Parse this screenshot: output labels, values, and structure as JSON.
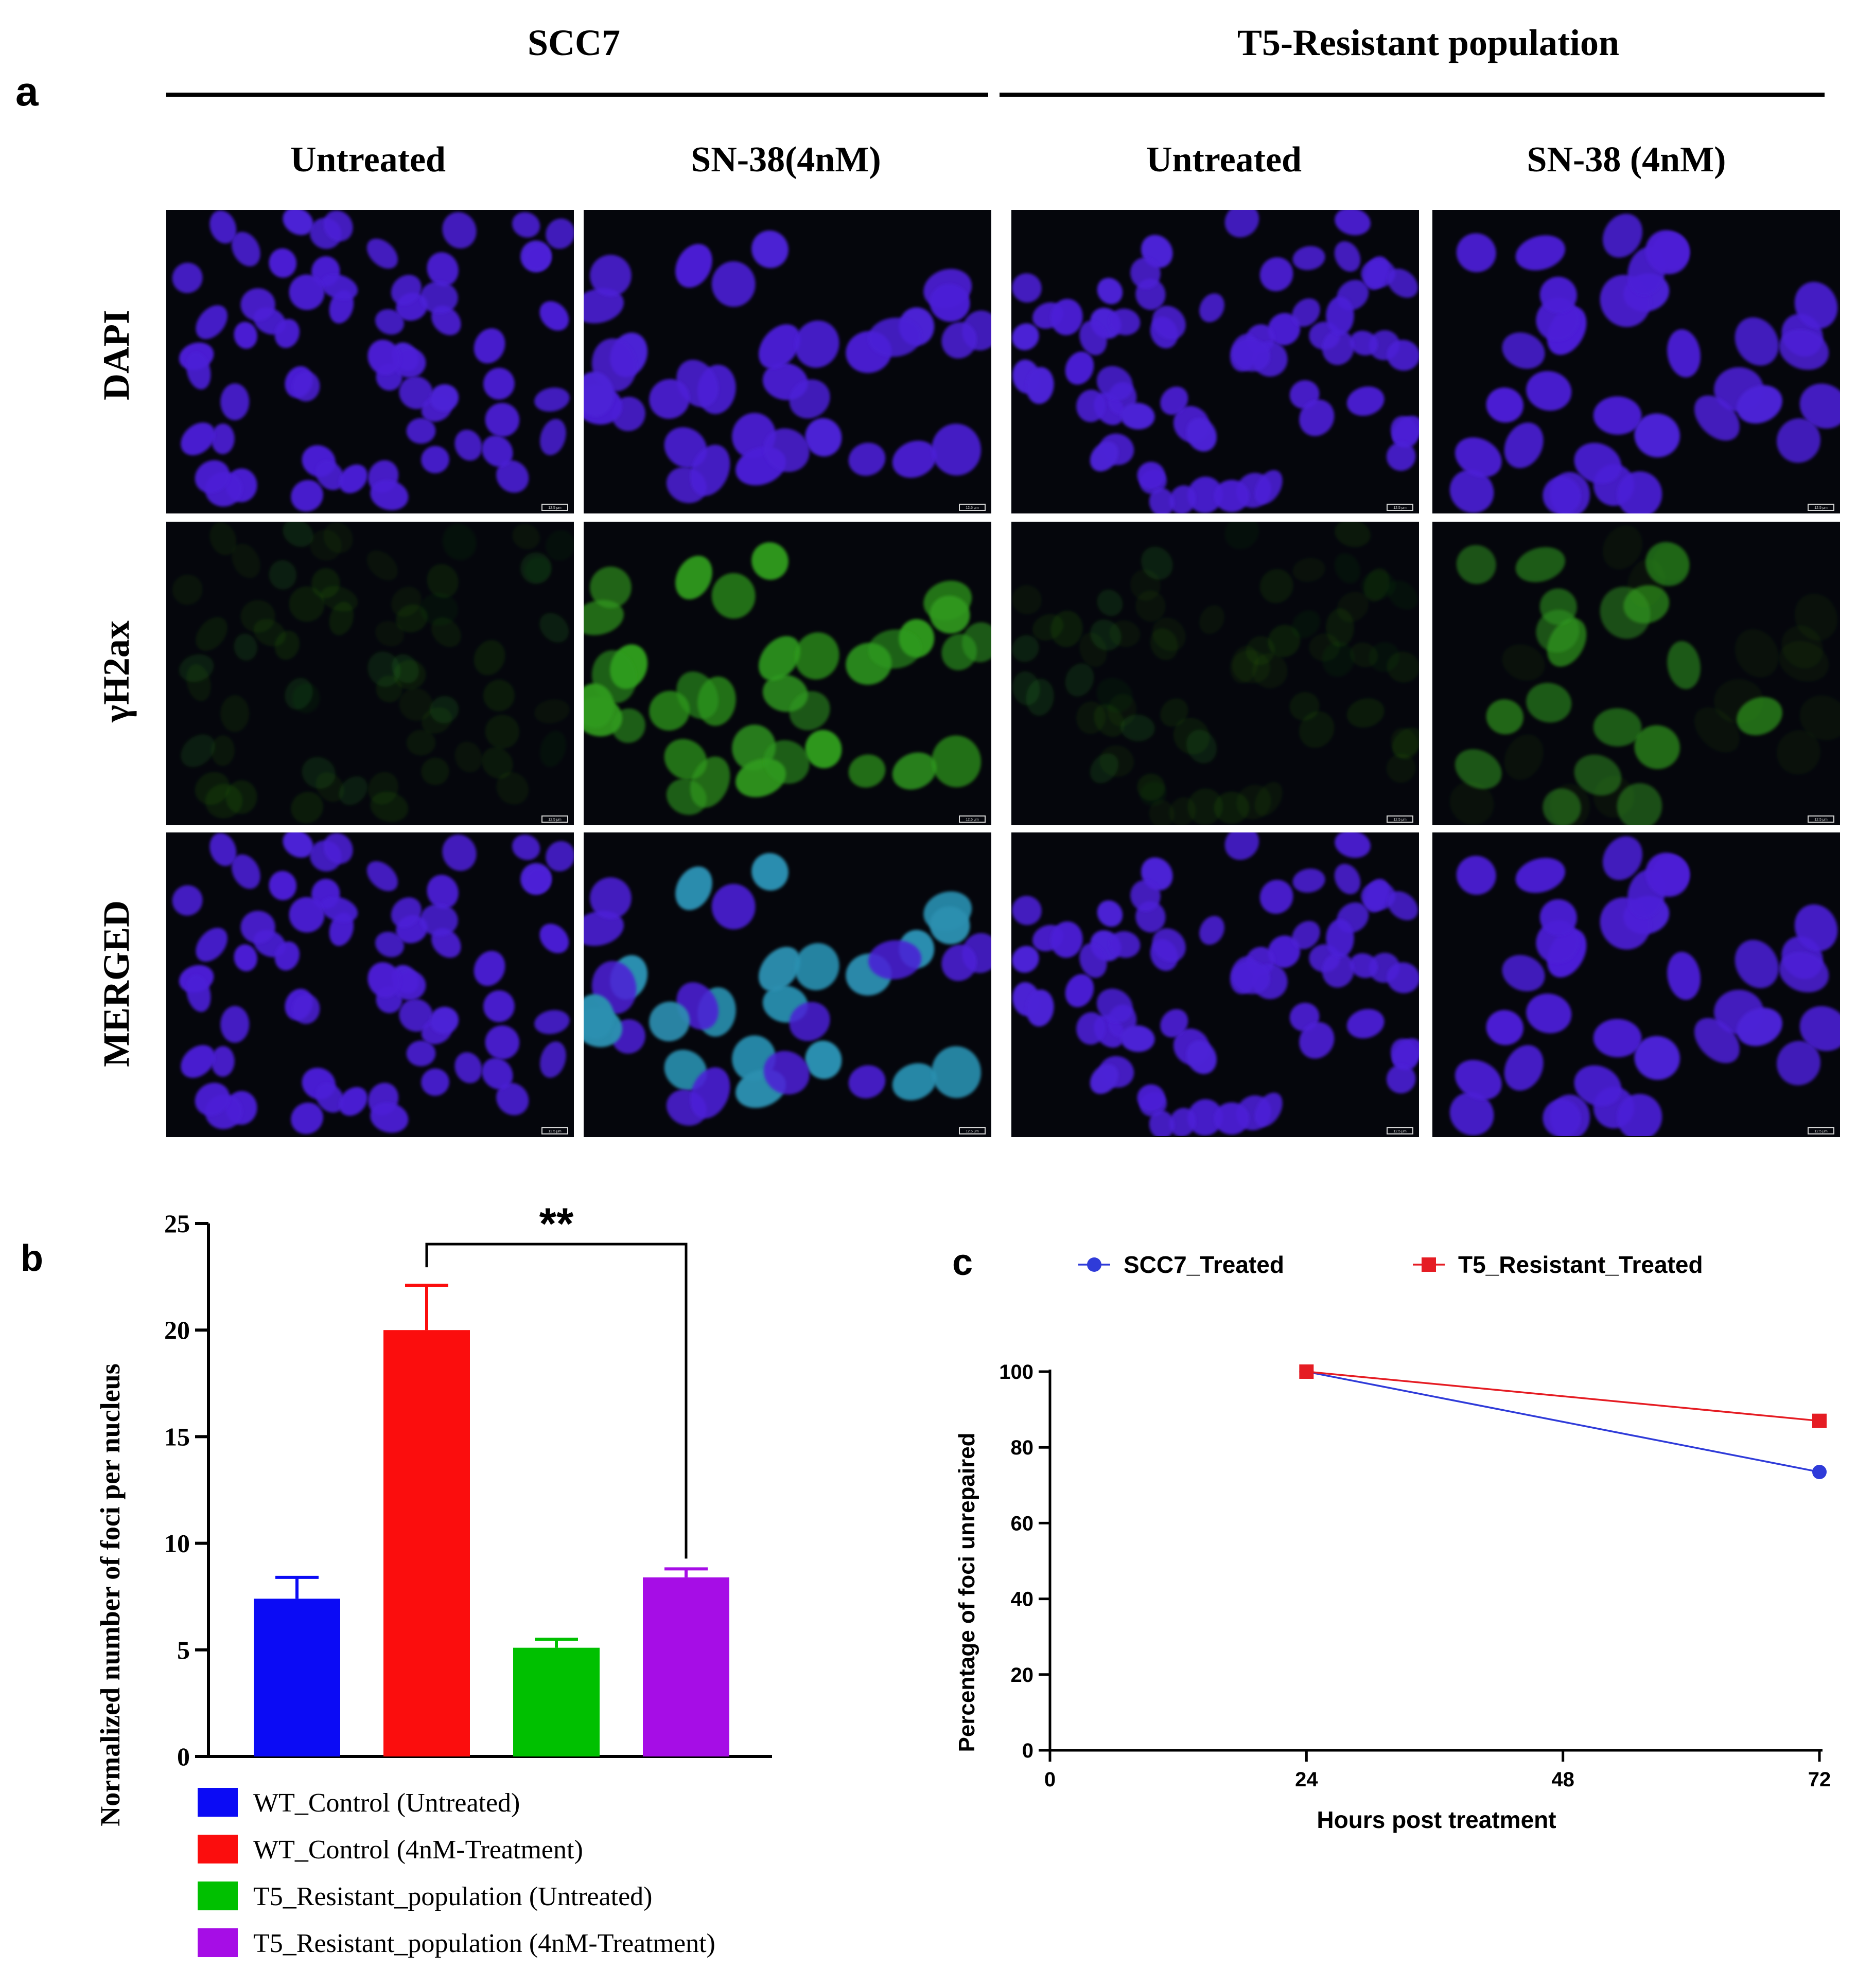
{
  "panel_letters": {
    "a": "a",
    "b": "b",
    "c": "c"
  },
  "panel_a": {
    "groups": [
      "SCC7",
      "T5-Resistant population"
    ],
    "columns": [
      "Untreated",
      "SN-38(4nM)",
      "Untreated",
      "SN-38 (4nM)"
    ],
    "rows": [
      "DAPI",
      "γH2ax",
      "MERGED"
    ],
    "scale_bar_label": "12.5 μm",
    "colors": {
      "background": "#05060c",
      "nucleus_dapi": "#4b1fd6",
      "foci_gamma": "#2f9a1e",
      "merged_cyan": "#2a8fb0"
    }
  },
  "chart_data": [
    {
      "panel": "b",
      "type": "bar",
      "title": "",
      "xlabel": "",
      "ylabel": "Normalized number of foci per nucleus",
      "ylim": [
        0,
        25
      ],
      "yticks": [
        0,
        5,
        10,
        15,
        20,
        25
      ],
      "categories": [
        "WT_Control (Untreated)",
        "WT_Control (4nM-Treatment)",
        "T5_Resistant_population (Untreated)",
        "T5_Resistant_population (4nM-Treatment)"
      ],
      "values": [
        7.4,
        20.0,
        5.1,
        8.4
      ],
      "errors": [
        1.0,
        2.1,
        0.4,
        0.4
      ],
      "colors": [
        "#0b0bf5",
        "#fb0d0d",
        "#00c000",
        "#a60de6"
      ],
      "significance": {
        "from": 1,
        "to": 3,
        "label": "**"
      },
      "legend": {
        "placement": "bottom",
        "entries": [
          "WT_Control (Untreated)",
          "WT_Control (4nM-Treatment)",
          "T5_Resistant_population (Untreated)",
          "T5_Resistant_population (4nM-Treatment)"
        ]
      }
    },
    {
      "panel": "c",
      "type": "line",
      "title": "",
      "xlabel": "Hours post treatment",
      "ylabel": "Percentage of foci unrepaired",
      "xlim": [
        0,
        72
      ],
      "ylim": [
        0,
        100
      ],
      "xticks": [
        0,
        24,
        48,
        72
      ],
      "yticks": [
        0,
        20,
        40,
        60,
        80,
        100
      ],
      "series": [
        {
          "name": "SCC7_Treated",
          "x": [
            24,
            72
          ],
          "values": [
            100,
            73.5
          ],
          "color": "#2f3bd9",
          "marker": "circle"
        },
        {
          "name": "T5_Resistant_Treated",
          "x": [
            24,
            72
          ],
          "values": [
            100,
            87
          ],
          "color": "#e51c23",
          "marker": "square"
        }
      ],
      "legend": {
        "placement": "top"
      }
    }
  ]
}
